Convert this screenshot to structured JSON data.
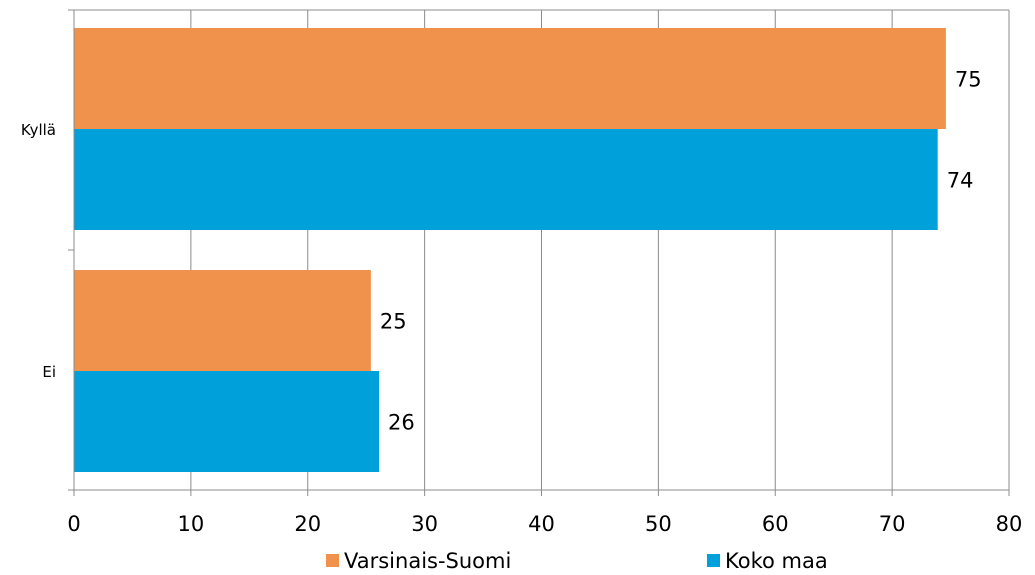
{
  "chart_data": {
    "type": "bar",
    "orientation": "horizontal",
    "categories": [
      "Kyllä",
      "Ei"
    ],
    "series": [
      {
        "name": "Varsinais-Suomi",
        "color": "#F0924B",
        "values": [
          75,
          25
        ],
        "value_positions": [
          74.6,
          25.4
        ]
      },
      {
        "name": "Koko maa",
        "color": "#00A0DA",
        "values": [
          74,
          26
        ],
        "value_positions": [
          73.9,
          26.1
        ]
      }
    ],
    "xlim": [
      0,
      80
    ],
    "xticks": [
      0,
      10,
      20,
      30,
      40,
      50,
      60,
      70,
      80
    ],
    "grid": true,
    "legend_position": "bottom"
  }
}
